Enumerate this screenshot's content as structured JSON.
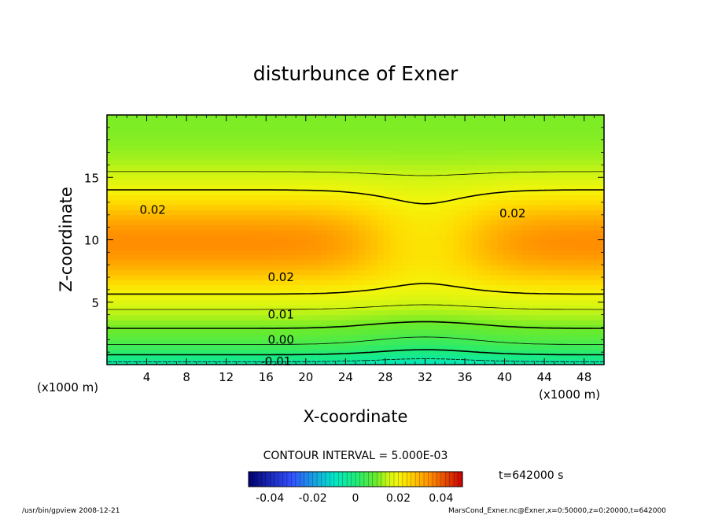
{
  "chart_data": {
    "type": "heatmap",
    "title": "disturbunce of Exner",
    "xlabel": "X-coordinate",
    "ylabel": "Z-coordinate",
    "x_unit": "(x1000 m)",
    "y_unit": "(x1000 m)",
    "xlim": [
      0,
      50
    ],
    "ylim": [
      0,
      20
    ],
    "x_ticks": [
      4,
      8,
      12,
      16,
      20,
      24,
      28,
      32,
      36,
      40,
      44,
      48
    ],
    "y_ticks": [
      5,
      10,
      15
    ],
    "contour_interval": "CONTOUR INTERVAL = 5.000E-03",
    "contour_labels": [
      {
        "text": "0.02",
        "x": 4.6,
        "z": 12.4
      },
      {
        "text": "0.02",
        "x": 40.8,
        "z": 12.1
      },
      {
        "text": "0.02",
        "x": 17.5,
        "z": 7.0
      },
      {
        "text": "0.01",
        "x": 17.5,
        "z": 4.0
      },
      {
        "text": "0.00",
        "x": 17.5,
        "z": 2.0
      },
      {
        "text": "-0.01",
        "x": 17.0,
        "z": 0.25
      }
    ],
    "colorbar": {
      "range": [
        -0.05,
        0.05
      ],
      "tick_labels": [
        "-0.04",
        "-0.02",
        "0",
        "0.02",
        "0.04"
      ],
      "tick_values": [
        -0.04,
        -0.02,
        0,
        0.02,
        0.04
      ]
    },
    "time_label": "t=642000 s",
    "footer_left": "/usr/bin/gpview   2008-12-21",
    "footer_right": "MarsCond_Exner.nc@Exner,x=0:50000,z=0:20000,t=642000"
  }
}
